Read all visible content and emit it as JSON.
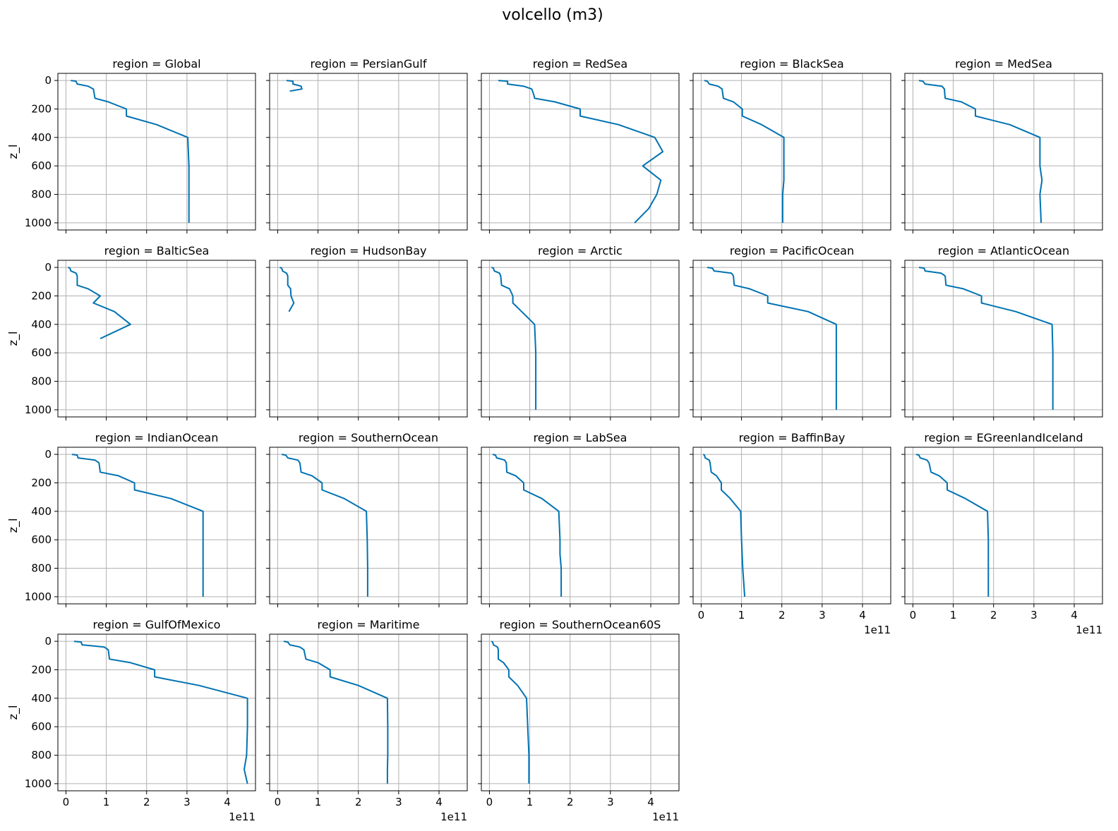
{
  "figure": {
    "title": "volcello (m3)",
    "ylabel": "z_l",
    "x_offset_label": "1e11",
    "line_color": "#0072b2"
  },
  "chart_data": {
    "type": "line",
    "title": "volcello (m3)",
    "facet_label_prefix": "region = ",
    "xlabel": "",
    "ylabel": "z_l",
    "x_scale_note": "1e11",
    "xlim": [
      -0.2,
      4.7
    ],
    "ylim": [
      1050,
      -50
    ],
    "y_inverted": true,
    "grid": true,
    "xticks": [
      0,
      1,
      2,
      3,
      4
    ],
    "yticks": [
      0,
      200,
      400,
      600,
      800,
      1000
    ],
    "panels": [
      {
        "region": "Global",
        "points": [
          [
            0.12,
            0
          ],
          [
            0.25,
            5
          ],
          [
            0.28,
            25
          ],
          [
            0.55,
            40
          ],
          [
            0.68,
            60
          ],
          [
            0.72,
            125
          ],
          [
            1.05,
            150
          ],
          [
            1.5,
            200
          ],
          [
            1.5,
            250
          ],
          [
            2.25,
            310
          ],
          [
            3.02,
            400
          ],
          [
            3.05,
            600
          ],
          [
            3.05,
            800
          ],
          [
            3.05,
            1000
          ]
        ]
      },
      {
        "region": "PersianGulf",
        "points": [
          [
            0.22,
            0
          ],
          [
            0.38,
            5
          ],
          [
            0.38,
            25
          ],
          [
            0.58,
            40
          ],
          [
            0.6,
            60
          ],
          [
            0.3,
            75
          ]
        ]
      },
      {
        "region": "RedSea",
        "points": [
          [
            0.22,
            0
          ],
          [
            0.45,
            5
          ],
          [
            0.45,
            25
          ],
          [
            0.85,
            40
          ],
          [
            1.05,
            60
          ],
          [
            1.1,
            100
          ],
          [
            1.12,
            125
          ],
          [
            1.62,
            150
          ],
          [
            2.25,
            200
          ],
          [
            2.25,
            250
          ],
          [
            3.2,
            310
          ],
          [
            4.1,
            400
          ],
          [
            4.3,
            500
          ],
          [
            3.8,
            600
          ],
          [
            4.25,
            700
          ],
          [
            4.15,
            800
          ],
          [
            3.95,
            900
          ],
          [
            3.6,
            1000
          ]
        ]
      },
      {
        "region": "BlackSea",
        "points": [
          [
            0.08,
            0
          ],
          [
            0.15,
            5
          ],
          [
            0.2,
            25
          ],
          [
            0.42,
            40
          ],
          [
            0.52,
            60
          ],
          [
            0.55,
            125
          ],
          [
            0.8,
            150
          ],
          [
            1.02,
            200
          ],
          [
            1.02,
            250
          ],
          [
            1.5,
            310
          ],
          [
            2.05,
            400
          ],
          [
            2.05,
            600
          ],
          [
            2.05,
            700
          ],
          [
            2.02,
            800
          ],
          [
            2.02,
            1000
          ]
        ]
      },
      {
        "region": "MedSea",
        "points": [
          [
            0.15,
            0
          ],
          [
            0.25,
            5
          ],
          [
            0.3,
            25
          ],
          [
            0.72,
            40
          ],
          [
            0.78,
            60
          ],
          [
            0.8,
            125
          ],
          [
            1.2,
            150
          ],
          [
            1.55,
            200
          ],
          [
            1.55,
            250
          ],
          [
            2.4,
            310
          ],
          [
            3.15,
            400
          ],
          [
            3.15,
            600
          ],
          [
            3.2,
            700
          ],
          [
            3.15,
            800
          ],
          [
            3.18,
            1000
          ]
        ]
      },
      {
        "region": "BalticSea",
        "points": [
          [
            0.05,
            0
          ],
          [
            0.1,
            5
          ],
          [
            0.12,
            25
          ],
          [
            0.25,
            40
          ],
          [
            0.28,
            60
          ],
          [
            0.28,
            125
          ],
          [
            0.55,
            150
          ],
          [
            0.85,
            200
          ],
          [
            0.68,
            250
          ],
          [
            1.2,
            310
          ],
          [
            1.6,
            400
          ],
          [
            0.85,
            500
          ]
        ]
      },
      {
        "region": "HudsonBay",
        "points": [
          [
            0.05,
            0
          ],
          [
            0.1,
            5
          ],
          [
            0.12,
            25
          ],
          [
            0.22,
            40
          ],
          [
            0.25,
            60
          ],
          [
            0.25,
            125
          ],
          [
            0.32,
            150
          ],
          [
            0.33,
            200
          ],
          [
            0.4,
            250
          ],
          [
            0.28,
            310
          ]
        ]
      },
      {
        "region": "Arctic",
        "points": [
          [
            0.05,
            0
          ],
          [
            0.1,
            5
          ],
          [
            0.12,
            25
          ],
          [
            0.25,
            40
          ],
          [
            0.28,
            60
          ],
          [
            0.3,
            125
          ],
          [
            0.5,
            150
          ],
          [
            0.58,
            200
          ],
          [
            0.58,
            250
          ],
          [
            0.8,
            310
          ],
          [
            1.12,
            400
          ],
          [
            1.15,
            600
          ],
          [
            1.15,
            800
          ],
          [
            1.15,
            1000
          ]
        ]
      },
      {
        "region": "PacificOcean",
        "points": [
          [
            0.15,
            0
          ],
          [
            0.28,
            5
          ],
          [
            0.32,
            25
          ],
          [
            0.75,
            40
          ],
          [
            0.8,
            60
          ],
          [
            0.82,
            125
          ],
          [
            1.2,
            150
          ],
          [
            1.65,
            200
          ],
          [
            1.65,
            250
          ],
          [
            2.65,
            310
          ],
          [
            3.35,
            400
          ],
          [
            3.35,
            600
          ],
          [
            3.35,
            800
          ],
          [
            3.35,
            1000
          ]
        ]
      },
      {
        "region": "AtlanticOcean",
        "points": [
          [
            0.15,
            0
          ],
          [
            0.28,
            5
          ],
          [
            0.3,
            25
          ],
          [
            0.7,
            40
          ],
          [
            0.8,
            60
          ],
          [
            0.82,
            125
          ],
          [
            1.25,
            150
          ],
          [
            1.7,
            200
          ],
          [
            1.7,
            250
          ],
          [
            2.55,
            310
          ],
          [
            3.45,
            400
          ],
          [
            3.47,
            600
          ],
          [
            3.47,
            800
          ],
          [
            3.47,
            1000
          ]
        ]
      },
      {
        "region": "IndianOcean",
        "points": [
          [
            0.15,
            0
          ],
          [
            0.28,
            5
          ],
          [
            0.3,
            25
          ],
          [
            0.72,
            40
          ],
          [
            0.82,
            60
          ],
          [
            0.85,
            125
          ],
          [
            1.3,
            150
          ],
          [
            1.7,
            200
          ],
          [
            1.7,
            250
          ],
          [
            2.6,
            310
          ],
          [
            3.4,
            400
          ],
          [
            3.4,
            600
          ],
          [
            3.4,
            800
          ],
          [
            3.4,
            1000
          ]
        ]
      },
      {
        "region": "SouthernOcean",
        "points": [
          [
            0.1,
            0
          ],
          [
            0.2,
            5
          ],
          [
            0.25,
            25
          ],
          [
            0.5,
            40
          ],
          [
            0.55,
            60
          ],
          [
            0.58,
            125
          ],
          [
            0.85,
            150
          ],
          [
            1.1,
            200
          ],
          [
            1.1,
            250
          ],
          [
            1.65,
            310
          ],
          [
            2.2,
            400
          ],
          [
            2.22,
            600
          ],
          [
            2.23,
            800
          ],
          [
            2.23,
            1000
          ]
        ]
      },
      {
        "region": "LabSea",
        "points": [
          [
            0.08,
            0
          ],
          [
            0.15,
            5
          ],
          [
            0.18,
            25
          ],
          [
            0.38,
            40
          ],
          [
            0.42,
            60
          ],
          [
            0.43,
            125
          ],
          [
            0.65,
            150
          ],
          [
            0.85,
            200
          ],
          [
            0.85,
            250
          ],
          [
            1.3,
            310
          ],
          [
            1.72,
            400
          ],
          [
            1.75,
            600
          ],
          [
            1.75,
            700
          ],
          [
            1.78,
            800
          ],
          [
            1.78,
            1000
          ]
        ]
      },
      {
        "region": "BaffinBay",
        "points": [
          [
            0.05,
            0
          ],
          [
            0.08,
            5
          ],
          [
            0.1,
            25
          ],
          [
            0.2,
            40
          ],
          [
            0.22,
            60
          ],
          [
            0.25,
            125
          ],
          [
            0.38,
            150
          ],
          [
            0.5,
            200
          ],
          [
            0.5,
            250
          ],
          [
            0.72,
            310
          ],
          [
            0.98,
            400
          ],
          [
            1.0,
            600
          ],
          [
            1.03,
            800
          ],
          [
            1.08,
            1000
          ]
        ]
      },
      {
        "region": "EGreenlandIceland",
        "points": [
          [
            0.08,
            0
          ],
          [
            0.15,
            5
          ],
          [
            0.18,
            25
          ],
          [
            0.35,
            40
          ],
          [
            0.4,
            60
          ],
          [
            0.45,
            125
          ],
          [
            0.65,
            150
          ],
          [
            0.85,
            200
          ],
          [
            0.85,
            250
          ],
          [
            1.3,
            310
          ],
          [
            1.85,
            400
          ],
          [
            1.87,
            600
          ],
          [
            1.87,
            800
          ],
          [
            1.87,
            1000
          ]
        ]
      },
      {
        "region": "GulfOfMexico",
        "points": [
          [
            0.2,
            0
          ],
          [
            0.38,
            5
          ],
          [
            0.4,
            25
          ],
          [
            0.95,
            40
          ],
          [
            1.05,
            60
          ],
          [
            1.08,
            125
          ],
          [
            1.6,
            150
          ],
          [
            2.2,
            200
          ],
          [
            2.2,
            250
          ],
          [
            3.3,
            310
          ],
          [
            4.5,
            400
          ],
          [
            4.5,
            600
          ],
          [
            4.48,
            800
          ],
          [
            4.42,
            900
          ],
          [
            4.5,
            1000
          ]
        ]
      },
      {
        "region": "Maritime",
        "points": [
          [
            0.15,
            0
          ],
          [
            0.25,
            5
          ],
          [
            0.3,
            25
          ],
          [
            0.55,
            40
          ],
          [
            0.65,
            60
          ],
          [
            0.7,
            125
          ],
          [
            1.0,
            150
          ],
          [
            1.3,
            200
          ],
          [
            1.3,
            250
          ],
          [
            2.0,
            310
          ],
          [
            2.72,
            400
          ],
          [
            2.73,
            600
          ],
          [
            2.73,
            800
          ],
          [
            2.72,
            900
          ],
          [
            2.72,
            1000
          ]
        ]
      },
      {
        "region": "SouthernOcean60S",
        "points": [
          [
            0.05,
            0
          ],
          [
            0.08,
            5
          ],
          [
            0.1,
            25
          ],
          [
            0.2,
            40
          ],
          [
            0.22,
            60
          ],
          [
            0.22,
            125
          ],
          [
            0.35,
            150
          ],
          [
            0.48,
            200
          ],
          [
            0.48,
            250
          ],
          [
            0.7,
            310
          ],
          [
            0.92,
            400
          ],
          [
            0.95,
            600
          ],
          [
            0.98,
            800
          ],
          [
            0.98,
            1000
          ]
        ]
      }
    ]
  }
}
